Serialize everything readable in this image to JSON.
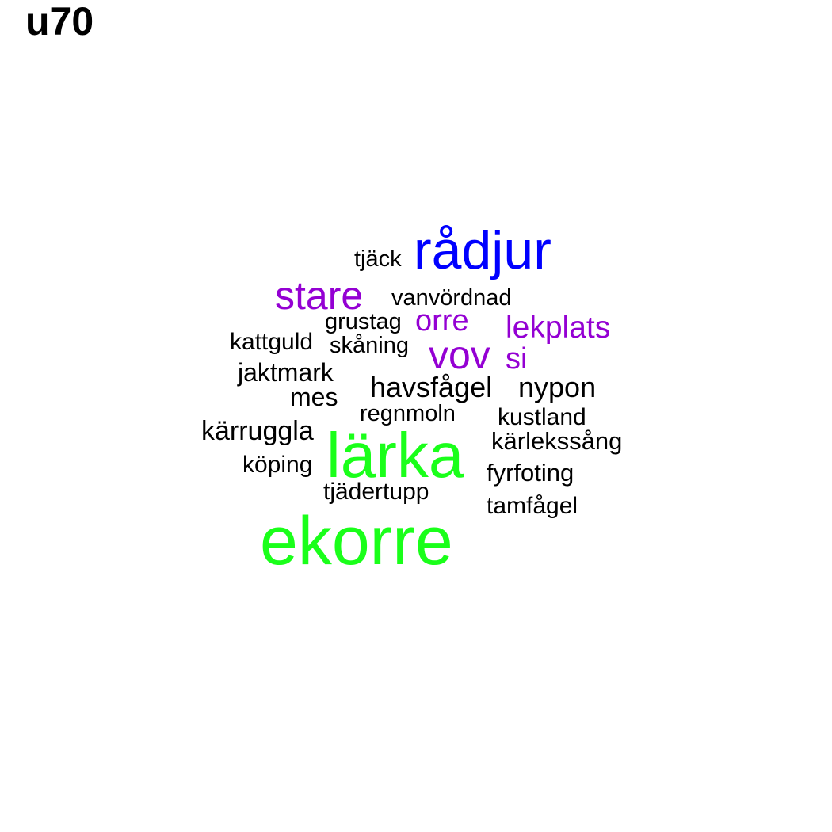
{
  "title": "u70",
  "colors": {
    "black": "#000000",
    "blue": "#0000ff",
    "purple": "#9400d3",
    "green": "#1aff1a"
  },
  "words": [
    {
      "text": "ekorre",
      "color": "green"
    },
    {
      "text": "lärka",
      "color": "green"
    },
    {
      "text": "rådjur",
      "color": "blue"
    },
    {
      "text": "stare",
      "color": "purple"
    },
    {
      "text": "vov",
      "color": "purple"
    },
    {
      "text": "orre",
      "color": "purple"
    },
    {
      "text": "lekplats",
      "color": "purple"
    },
    {
      "text": "si",
      "color": "purple"
    },
    {
      "text": "tjäck",
      "color": "black"
    },
    {
      "text": "vanvördnad",
      "color": "black"
    },
    {
      "text": "grustag",
      "color": "black"
    },
    {
      "text": "kattguld",
      "color": "black"
    },
    {
      "text": "skåning",
      "color": "black"
    },
    {
      "text": "jaktmark",
      "color": "black"
    },
    {
      "text": "mes",
      "color": "black"
    },
    {
      "text": "havsfågel",
      "color": "black"
    },
    {
      "text": "nypon",
      "color": "black"
    },
    {
      "text": "regnmoln",
      "color": "black"
    },
    {
      "text": "kustland",
      "color": "black"
    },
    {
      "text": "kärruggla",
      "color": "black"
    },
    {
      "text": "kärlekssång",
      "color": "black"
    },
    {
      "text": "köping",
      "color": "black"
    },
    {
      "text": "fyrfoting",
      "color": "black"
    },
    {
      "text": "tjädertupp",
      "color": "black"
    },
    {
      "text": "tamfågel",
      "color": "black"
    }
  ]
}
